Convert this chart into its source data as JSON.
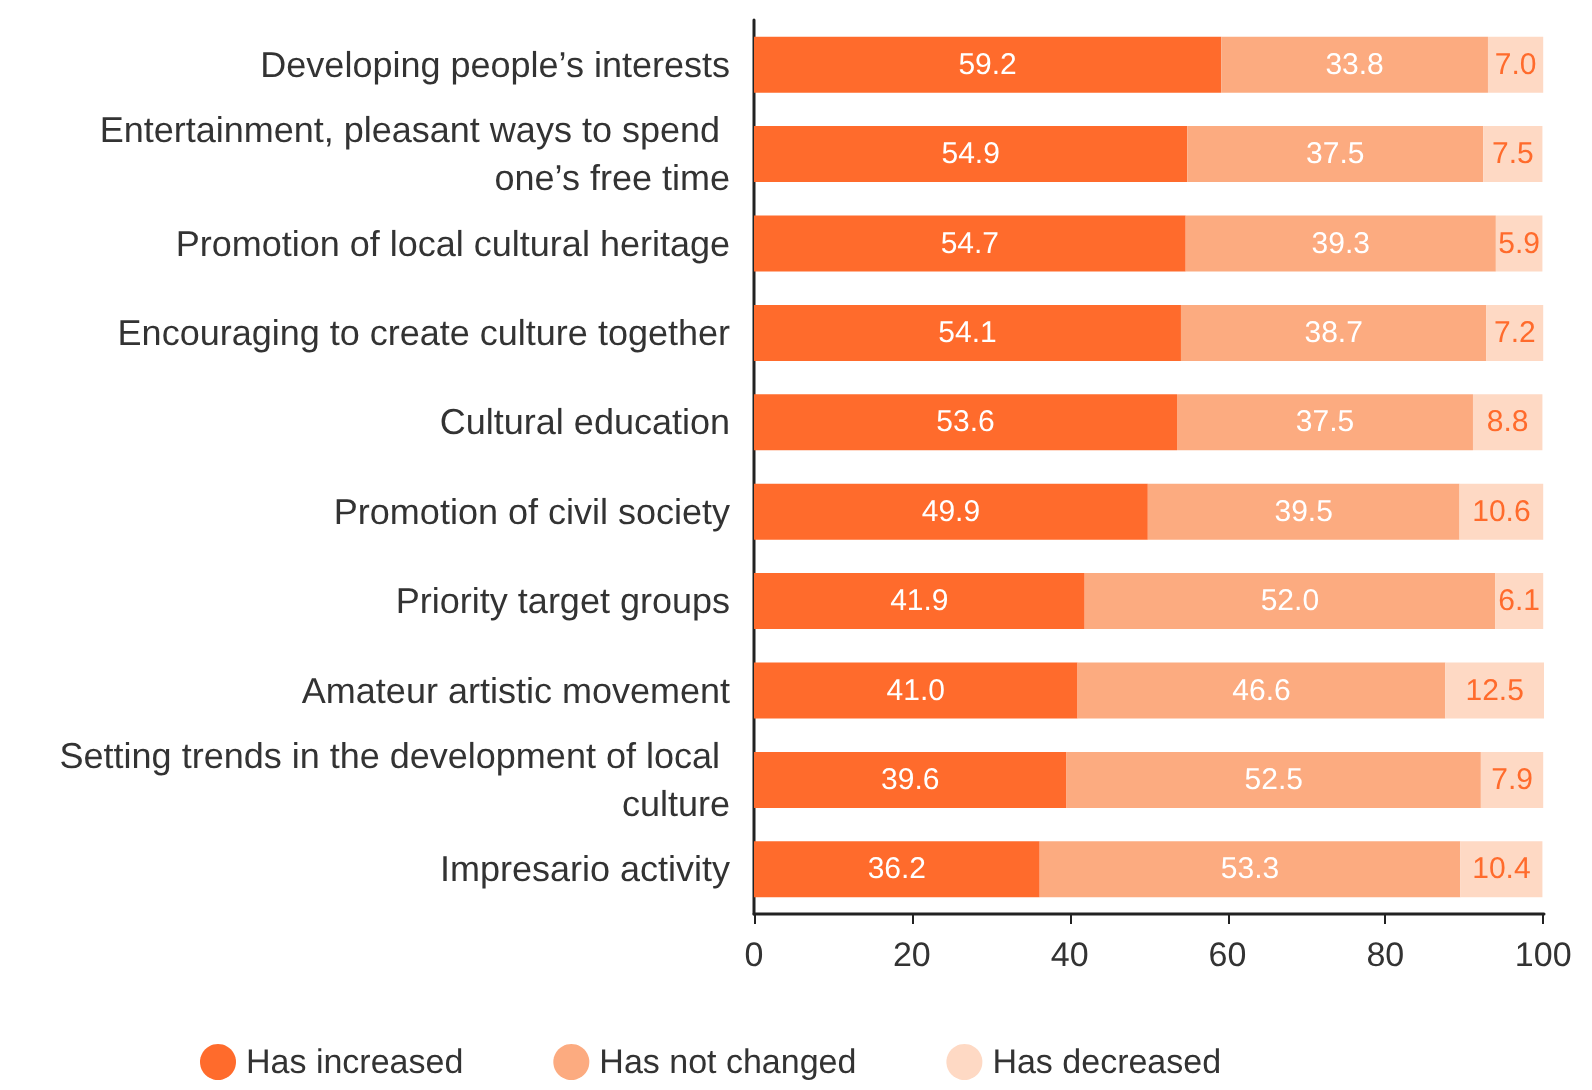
{
  "chart_data": {
    "type": "bar",
    "orientation": "horizontal",
    "stacked": true,
    "categories": [
      "Developing people’s interests",
      "Entertainment, pleasant ways to spend one’s free time",
      "Promotion of local cultural heritage",
      "Encouraging to create culture together",
      "Cultural education",
      "Promotion of civil society",
      "Priority target groups",
      "Amateur artistic movement",
      "Setting trends in the development of local culture",
      "Impresario activity"
    ],
    "series": [
      {
        "name": "Has increased",
        "color": "#ff6b2c",
        "values": [
          59.2,
          54.9,
          54.7,
          54.1,
          53.6,
          49.9,
          41.9,
          41.0,
          39.6,
          36.2
        ],
        "value_labels": [
          "59.2",
          "54.9",
          "54.7",
          "54.1",
          "53.6",
          "49.9",
          "41.9",
          "41.0",
          "39.6",
          "36.2"
        ]
      },
      {
        "name": "Has not changed",
        "color": "#fcab80",
        "values": [
          33.8,
          37.5,
          39.3,
          38.7,
          37.5,
          39.5,
          52.0,
          46.6,
          52.5,
          53.3
        ],
        "value_labels": [
          "33.8",
          "37.5",
          "39.3",
          "38.7",
          "37.5",
          "39.5",
          "52.0",
          "46.6",
          "52.5",
          "53.3"
        ]
      },
      {
        "name": "Has decreased",
        "color": "#fed9c4",
        "values": [
          7.0,
          7.5,
          5.9,
          7.2,
          8.8,
          10.6,
          6.1,
          12.5,
          7.9,
          10.4
        ],
        "value_labels": [
          "7.0",
          "7.5",
          "5.9",
          "7.2",
          "8.8",
          "10.6",
          "6.1",
          "12.5",
          "7.9",
          "10.4"
        ]
      }
    ],
    "xlim": [
      0,
      100.1
    ],
    "xticks": [
      0,
      20,
      40,
      60,
      80,
      100
    ],
    "grid": false,
    "legend": "bottom"
  }
}
